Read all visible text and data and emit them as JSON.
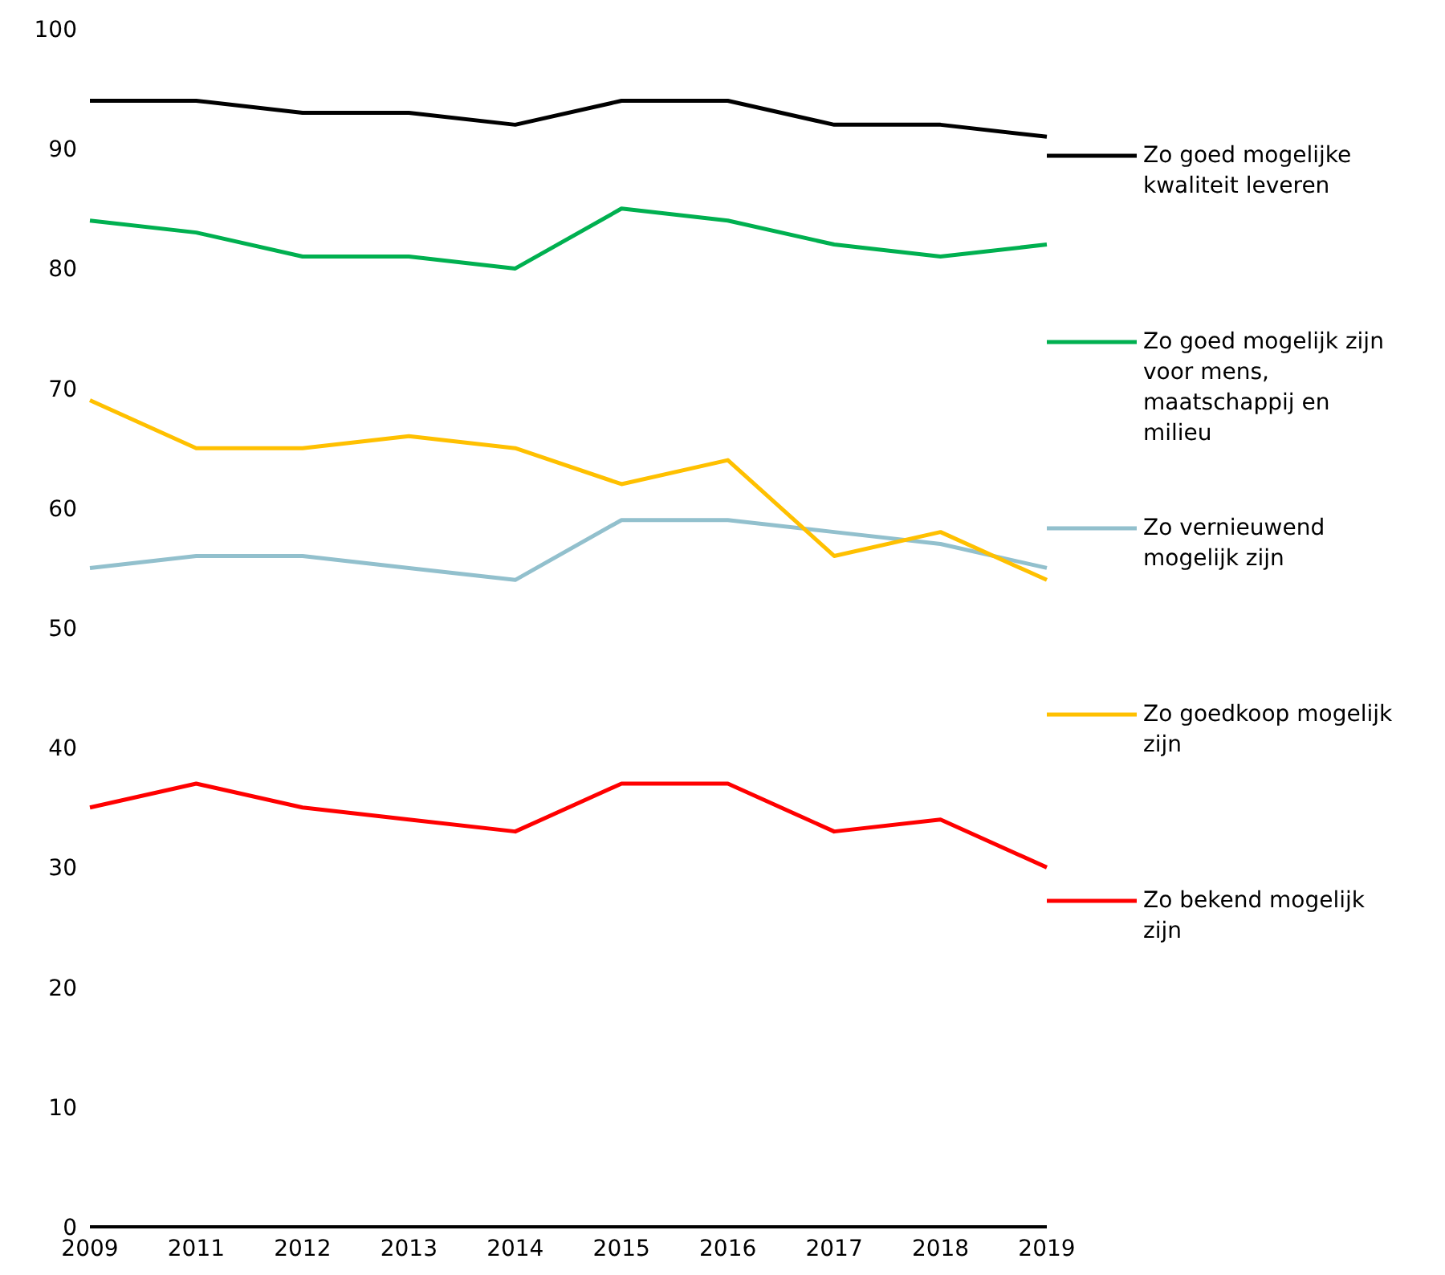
{
  "chart_data": {
    "type": "line",
    "categories": [
      "2009",
      "2011",
      "2012",
      "2013",
      "2014",
      "2015",
      "2016",
      "2017",
      "2018",
      "2019"
    ],
    "ylim": [
      0,
      100
    ],
    "yticks": [
      0,
      10,
      20,
      30,
      40,
      50,
      60,
      70,
      80,
      90,
      100
    ],
    "grid": false,
    "legend": "right",
    "marker": "none",
    "line_style": "solid",
    "series": [
      {
        "name": "Zo goed mogelijke kwaliteit leveren",
        "color": "#000000",
        "values": [
          94,
          94,
          93,
          93,
          92,
          94,
          94,
          92,
          92,
          91
        ]
      },
      {
        "name": "Zo goed mogelijk zijn voor mens, maatschappij en milieu",
        "color": "#00b050",
        "values": [
          84,
          83,
          81,
          81,
          80,
          85,
          84,
          82,
          81,
          82
        ]
      },
      {
        "name": "Zo vernieuwend mogelijk zijn",
        "color": "#92c0cd",
        "values": [
          55,
          56,
          56,
          55,
          54,
          59,
          59,
          58,
          57,
          55
        ]
      },
      {
        "name": "Zo goedkoop mogelijk zijn",
        "color": "#ffc000",
        "values": [
          69,
          65,
          65,
          66,
          65,
          62,
          64,
          56,
          58,
          54
        ]
      },
      {
        "name": "Zo bekend mogelijk zijn",
        "color": "#ff0000",
        "values": [
          35,
          37,
          35,
          34,
          33,
          37,
          37,
          33,
          34,
          30
        ]
      }
    ]
  }
}
